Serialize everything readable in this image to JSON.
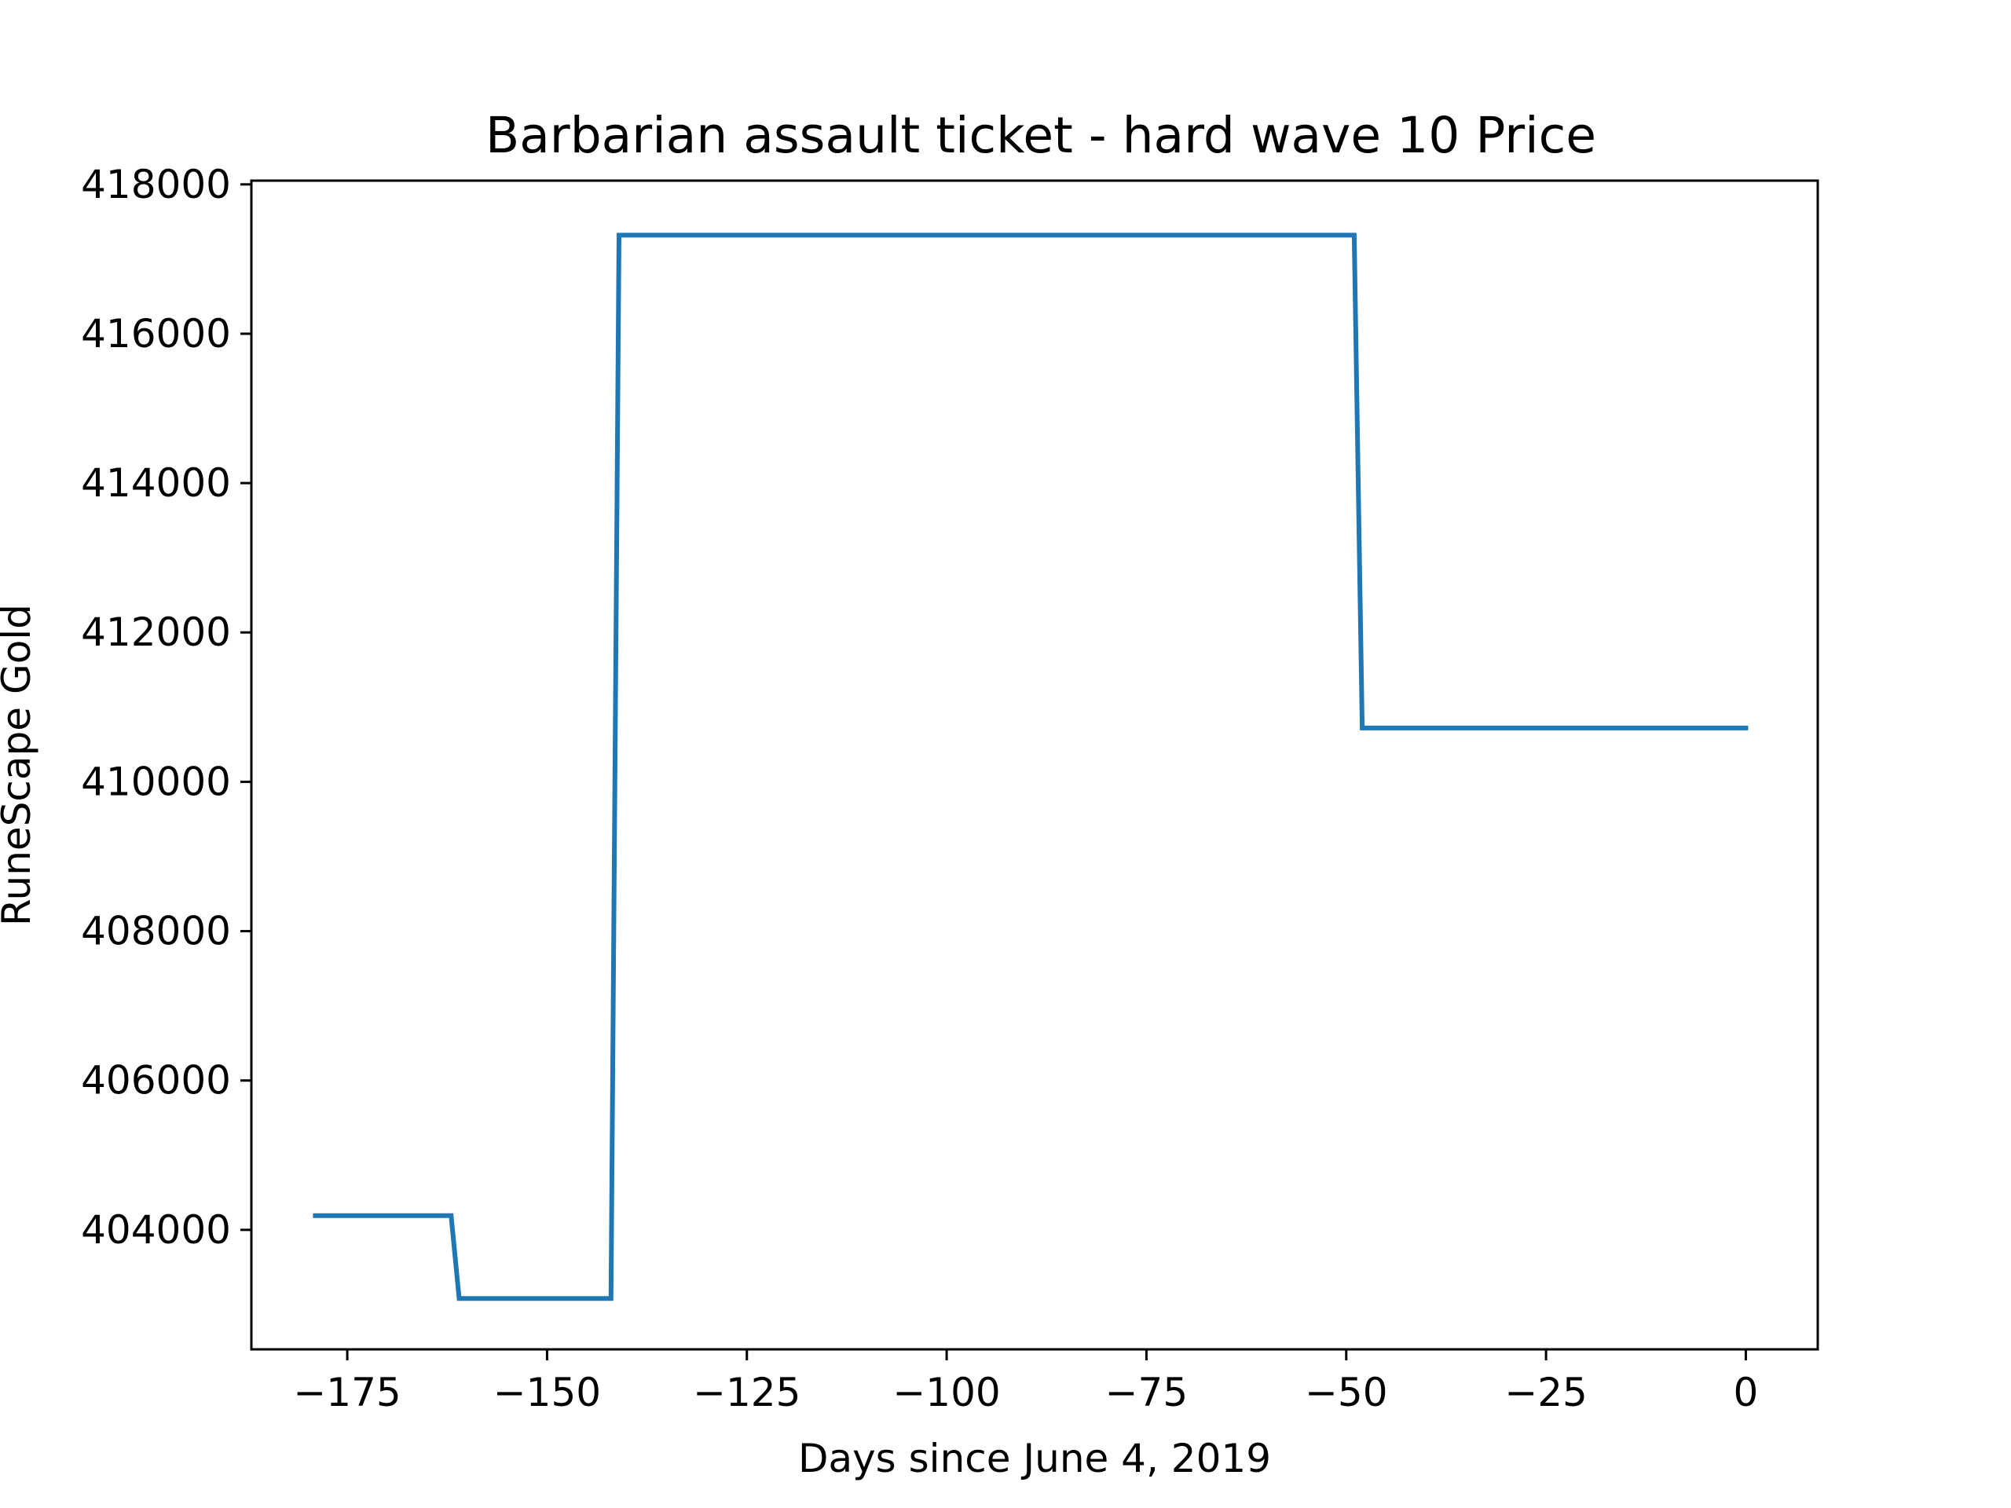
{
  "chart_data": {
    "type": "line",
    "title": "Barbarian assault ticket - hard wave 10 Price",
    "xlabel": "Days since June 4, 2019",
    "ylabel": "RuneScape Gold",
    "xlim": [
      -187,
      9
    ],
    "ylim": [
      402400,
      418050
    ],
    "xticks": [
      -175,
      -150,
      -125,
      -100,
      -75,
      -50,
      -25,
      0
    ],
    "xtick_labels": [
      "−175",
      "−150",
      "−125",
      "−100",
      "−75",
      "−50",
      "−25",
      "0"
    ],
    "yticks": [
      404000,
      406000,
      408000,
      410000,
      412000,
      414000,
      416000,
      418000
    ],
    "ytick_labels": [
      "404000",
      "406000",
      "408000",
      "410000",
      "412000",
      "414000",
      "416000",
      "418000"
    ],
    "grid": false,
    "series": [
      {
        "color": "#1f77b4",
        "x": [
          -179,
          -178,
          -177,
          -176,
          -175,
          -174,
          -173,
          -172,
          -171,
          -170,
          -169,
          -168,
          -167,
          -166,
          -165,
          -164,
          -163,
          -162,
          -161,
          -160,
          -159,
          -158,
          -157,
          -156,
          -155,
          -154,
          -153,
          -152,
          -151,
          -150,
          -149,
          -148,
          -147,
          -146,
          -145,
          -144,
          -143,
          -142,
          -141,
          -140,
          -135,
          -130,
          -125,
          -120,
          -115,
          -110,
          -105,
          -100,
          -95,
          -90,
          -85,
          -80,
          -75,
          -70,
          -65,
          -60,
          -55,
          -50,
          -49,
          -48,
          -45,
          -40,
          -35,
          -30,
          -25,
          -20,
          -15,
          -10,
          -5,
          0
        ],
        "values": [
          404190,
          404190,
          404190,
          404190,
          404190,
          404190,
          404190,
          404190,
          404190,
          404190,
          404190,
          404190,
          404190,
          404190,
          404190,
          404190,
          404190,
          404190,
          403080,
          403080,
          403080,
          403080,
          403080,
          403080,
          403080,
          403080,
          403080,
          403080,
          403080,
          403080,
          403080,
          403080,
          403080,
          403080,
          403080,
          403080,
          403080,
          403080,
          417320,
          417320,
          417320,
          417320,
          417320,
          417320,
          417320,
          417320,
          417320,
          417320,
          417320,
          417320,
          417320,
          417320,
          417320,
          417320,
          417320,
          417320,
          417320,
          417320,
          417320,
          410720,
          410720,
          410720,
          410720,
          410720,
          410720,
          410720,
          410720,
          410720,
          410720,
          410720
        ]
      }
    ]
  }
}
